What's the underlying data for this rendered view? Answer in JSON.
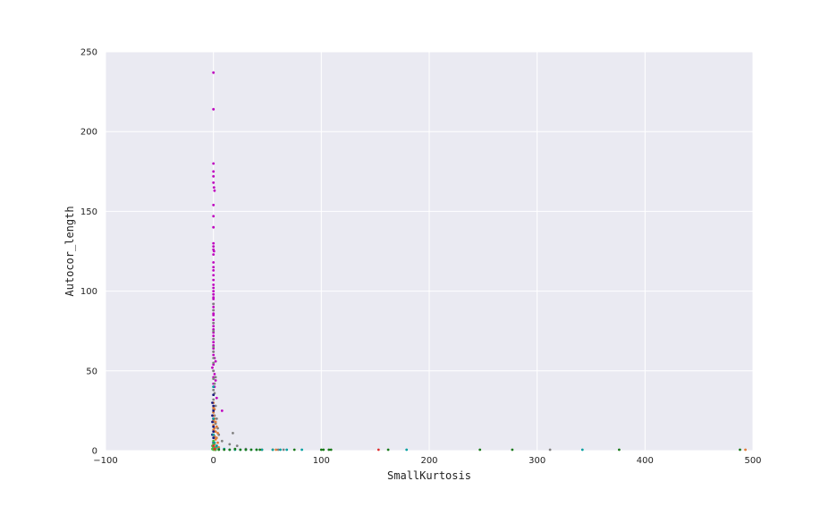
{
  "chart_data": {
    "type": "scatter",
    "title": "",
    "xlabel": "SmallKurtosis",
    "ylabel": "Autocor_length",
    "xlim": [
      -100,
      500
    ],
    "ylim": [
      0,
      250
    ],
    "xticks": [
      "−100",
      "0",
      "100",
      "200",
      "300",
      "400",
      "500"
    ],
    "xtick_values": [
      -100,
      0,
      100,
      200,
      300,
      400,
      500
    ],
    "yticks": [
      "0",
      "50",
      "100",
      "150",
      "200",
      "250"
    ],
    "ytick_values": [
      0,
      50,
      100,
      150,
      200,
      250
    ],
    "grid": true,
    "legend": "none",
    "background": "#eaeaf2",
    "grid_color": "#ffffff",
    "series": [
      {
        "color": "#bf00bf",
        "points": [
          [
            0,
            237
          ],
          [
            0,
            214
          ],
          [
            0,
            180
          ],
          [
            0,
            175
          ],
          [
            0,
            172
          ],
          [
            0,
            168
          ],
          [
            0.5,
            165
          ],
          [
            1,
            163
          ],
          [
            0,
            154
          ],
          [
            0,
            147
          ],
          [
            0,
            140
          ],
          [
            0,
            130
          ],
          [
            0,
            128
          ],
          [
            0,
            126
          ],
          [
            0.5,
            125
          ],
          [
            0,
            123
          ],
          [
            0,
            118
          ],
          [
            0,
            115
          ],
          [
            0,
            113
          ],
          [
            0,
            110
          ],
          [
            0,
            107
          ],
          [
            0,
            104
          ],
          [
            0,
            102
          ],
          [
            0,
            100
          ],
          [
            0,
            98
          ],
          [
            0,
            96
          ],
          [
            0,
            95
          ],
          [
            0,
            92
          ],
          [
            0,
            90
          ],
          [
            0,
            88
          ],
          [
            0,
            86
          ],
          [
            0,
            85
          ],
          [
            0,
            82
          ],
          [
            0,
            80
          ],
          [
            0,
            78
          ],
          [
            0,
            76
          ],
          [
            0,
            74
          ],
          [
            0,
            72
          ],
          [
            0,
            70
          ],
          [
            0,
            68
          ],
          [
            0,
            66
          ],
          [
            0,
            64
          ],
          [
            0,
            62
          ],
          [
            0,
            60
          ],
          [
            1,
            58
          ],
          [
            2,
            56
          ],
          [
            0,
            54
          ],
          [
            -1,
            52
          ],
          [
            0,
            50
          ],
          [
            1,
            48
          ],
          [
            0,
            46
          ],
          [
            2,
            44
          ],
          [
            0,
            42
          ],
          [
            1,
            40
          ],
          [
            3,
            33
          ],
          [
            8,
            25
          ],
          [
            0,
            20
          ]
        ]
      },
      {
        "color": "#808080",
        "points": [
          [
            0,
            92
          ],
          [
            0,
            88
          ],
          [
            0,
            80
          ],
          [
            0,
            75
          ],
          [
            0,
            70
          ],
          [
            0,
            65
          ],
          [
            0,
            62
          ],
          [
            0,
            58
          ],
          [
            0,
            55
          ],
          [
            0,
            50
          ],
          [
            2,
            46
          ],
          [
            0,
            45
          ],
          [
            1,
            42
          ],
          [
            0,
            40
          ],
          [
            0,
            38
          ],
          [
            1,
            36
          ],
          [
            0,
            35
          ],
          [
            0,
            32
          ],
          [
            0,
            30
          ],
          [
            2,
            28
          ],
          [
            0,
            26
          ],
          [
            0,
            24
          ],
          [
            1,
            22
          ],
          [
            3,
            20
          ],
          [
            0,
            18
          ],
          [
            2,
            17
          ],
          [
            0,
            15
          ],
          [
            4,
            14
          ],
          [
            1,
            12
          ],
          [
            5,
            10
          ],
          [
            2,
            8
          ],
          [
            8,
            6
          ],
          [
            18,
            11
          ],
          [
            22,
            3
          ],
          [
            15,
            4
          ],
          [
            3,
            2
          ],
          [
            30,
            1
          ],
          [
            60,
            0
          ],
          [
            65,
            0
          ],
          [
            312,
            0
          ]
        ]
      },
      {
        "color": "#e07b39",
        "points": [
          [
            0,
            30
          ],
          [
            0,
            27
          ],
          [
            1,
            26
          ],
          [
            0,
            24
          ],
          [
            0,
            22
          ],
          [
            1,
            20
          ],
          [
            0,
            19
          ],
          [
            2,
            18
          ],
          [
            0,
            16
          ],
          [
            3,
            15
          ],
          [
            1,
            14
          ],
          [
            0,
            13
          ],
          [
            2,
            12
          ],
          [
            4,
            11
          ],
          [
            0,
            10
          ],
          [
            1,
            9
          ],
          [
            3,
            8
          ],
          [
            2,
            7
          ],
          [
            0,
            6
          ],
          [
            4,
            5
          ],
          [
            1,
            4
          ],
          [
            3,
            3
          ],
          [
            0,
            2
          ],
          [
            2,
            1
          ],
          [
            5,
            2
          ],
          [
            1,
            0
          ],
          [
            45,
            0
          ],
          [
            55,
            0
          ],
          [
            58,
            0
          ],
          [
            493,
            0
          ]
        ]
      },
      {
        "color": "#1a1a80",
        "points": [
          [
            0,
            35
          ],
          [
            -1,
            30
          ],
          [
            0,
            28
          ],
          [
            0,
            25
          ],
          [
            -1,
            22
          ],
          [
            0,
            20
          ],
          [
            -1,
            18
          ],
          [
            0,
            15
          ],
          [
            0,
            12
          ],
          [
            -1,
            10
          ],
          [
            0,
            8
          ],
          [
            0,
            5
          ],
          [
            0,
            3
          ]
        ]
      },
      {
        "color": "#00a0a0",
        "points": [
          [
            0,
            40
          ],
          [
            0,
            20
          ],
          [
            0,
            10
          ],
          [
            1,
            5
          ],
          [
            3,
            3
          ],
          [
            5,
            1
          ],
          [
            10,
            1
          ],
          [
            15,
            0
          ],
          [
            20,
            0
          ],
          [
            25,
            0
          ],
          [
            30,
            0
          ],
          [
            35,
            0
          ],
          [
            40,
            0
          ],
          [
            45,
            0
          ],
          [
            55,
            0
          ],
          [
            62,
            0
          ],
          [
            68,
            0
          ],
          [
            82,
            0
          ],
          [
            179,
            0
          ],
          [
            342,
            0
          ]
        ]
      },
      {
        "color": "#1a7a1a",
        "points": [
          [
            0,
            2
          ],
          [
            0,
            1
          ],
          [
            2,
            0
          ],
          [
            5,
            0
          ],
          [
            10,
            0
          ],
          [
            15,
            0
          ],
          [
            20,
            1
          ],
          [
            25,
            0
          ],
          [
            30,
            0
          ],
          [
            35,
            0
          ],
          [
            40,
            0
          ],
          [
            43,
            0
          ],
          [
            75,
            0
          ],
          [
            100,
            0
          ],
          [
            102,
            0
          ],
          [
            107,
            0
          ],
          [
            109,
            0
          ],
          [
            162,
            0
          ],
          [
            247,
            0
          ],
          [
            277,
            0
          ],
          [
            376,
            0
          ],
          [
            488,
            0
          ]
        ]
      },
      {
        "color": "#40c040",
        "points": [
          [
            0,
            6
          ],
          [
            0,
            4
          ],
          [
            -1,
            3
          ],
          [
            0,
            2
          ],
          [
            1,
            2
          ],
          [
            -1,
            1
          ],
          [
            0,
            1
          ],
          [
            1,
            1
          ],
          [
            2,
            0
          ],
          [
            0,
            0
          ]
        ]
      },
      {
        "color": "#e03030",
        "points": [
          [
            153,
            0
          ],
          [
            0,
            3
          ],
          [
            1,
            1
          ]
        ]
      }
    ]
  }
}
